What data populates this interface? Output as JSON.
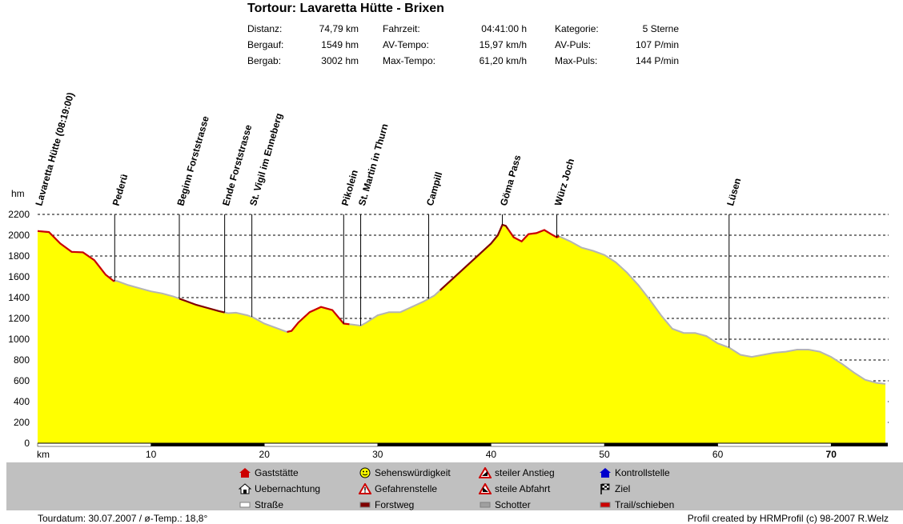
{
  "title": "Tortour: Lavaretta Hütte - Brixen",
  "stats": [
    {
      "label": "Distanz:",
      "value": "74,79 km"
    },
    {
      "label": "Bergauf:",
      "value": "1549 hm"
    },
    {
      "label": "Bergab:",
      "value": "3002 hm"
    },
    {
      "label": "Fahrzeit:",
      "value": "04:41:00 h"
    },
    {
      "label": "AV-Tempo:",
      "value": "15,97 km/h"
    },
    {
      "label": "Max-Tempo:",
      "value": "61,20 km/h"
    },
    {
      "label": "Kategorie:",
      "value": "5 Sterne"
    },
    {
      "label": "AV-Puls:",
      "value": "107 P/min"
    },
    {
      "label": "Max-Puls:",
      "value": "144 P/min"
    }
  ],
  "chart_data": {
    "type": "area",
    "ylabel": "hm",
    "xlabel": "km",
    "ylim": [
      0,
      2200
    ],
    "xlim": [
      0,
      75
    ],
    "yticks": [
      0,
      200,
      400,
      600,
      800,
      1000,
      1200,
      1400,
      1600,
      1800,
      2000,
      2200
    ],
    "xticks": [
      10,
      20,
      30,
      40,
      50,
      60,
      70
    ],
    "bold_xtick": 70,
    "grid": true,
    "fill_color": "#ffff00",
    "profile": [
      [
        0,
        2040
      ],
      [
        1,
        2030
      ],
      [
        2,
        1920
      ],
      [
        3,
        1840
      ],
      [
        4,
        1835
      ],
      [
        5,
        1760
      ],
      [
        6,
        1620
      ],
      [
        6.7,
        1560
      ],
      [
        7,
        1560
      ],
      [
        8,
        1520
      ],
      [
        9,
        1490
      ],
      [
        10,
        1460
      ],
      [
        11,
        1440
      ],
      [
        12,
        1410
      ],
      [
        13,
        1370
      ],
      [
        14,
        1330
      ],
      [
        15,
        1300
      ],
      [
        16,
        1270
      ],
      [
        16.8,
        1250
      ],
      [
        17.5,
        1255
      ],
      [
        18.5,
        1230
      ],
      [
        19,
        1210
      ],
      [
        20,
        1150
      ],
      [
        21,
        1110
      ],
      [
        22,
        1070
      ],
      [
        22.4,
        1080
      ],
      [
        23,
        1160
      ],
      [
        24,
        1260
      ],
      [
        25,
        1310
      ],
      [
        26,
        1280
      ],
      [
        27,
        1150
      ],
      [
        27.8,
        1140
      ],
      [
        28.5,
        1130
      ],
      [
        29,
        1160
      ],
      [
        30,
        1230
      ],
      [
        31,
        1260
      ],
      [
        32,
        1260
      ],
      [
        33,
        1310
      ],
      [
        34,
        1360
      ],
      [
        35,
        1420
      ],
      [
        36,
        1520
      ],
      [
        37,
        1620
      ],
      [
        38,
        1720
      ],
      [
        39,
        1820
      ],
      [
        40,
        1920
      ],
      [
        40.6,
        2000
      ],
      [
        41,
        2100
      ],
      [
        41.3,
        2090
      ],
      [
        42,
        1980
      ],
      [
        42.7,
        1940
      ],
      [
        43.3,
        2010
      ],
      [
        44,
        2020
      ],
      [
        44.7,
        2050
      ],
      [
        45.3,
        2010
      ],
      [
        45.8,
        1980
      ],
      [
        46,
        1990
      ],
      [
        47,
        1940
      ],
      [
        48,
        1880
      ],
      [
        49,
        1850
      ],
      [
        50,
        1810
      ],
      [
        51,
        1740
      ],
      [
        52,
        1640
      ],
      [
        53,
        1520
      ],
      [
        54,
        1380
      ],
      [
        55,
        1230
      ],
      [
        56,
        1100
      ],
      [
        57,
        1060
      ],
      [
        58,
        1060
      ],
      [
        59,
        1030
      ],
      [
        60,
        960
      ],
      [
        61,
        920
      ],
      [
        62,
        850
      ],
      [
        63,
        830
      ],
      [
        64,
        850
      ],
      [
        65,
        870
      ],
      [
        66,
        880
      ],
      [
        67,
        900
      ],
      [
        68,
        900
      ],
      [
        69,
        880
      ],
      [
        70,
        830
      ],
      [
        71,
        760
      ],
      [
        72,
        680
      ],
      [
        73,
        610
      ],
      [
        74,
        580
      ],
      [
        74.79,
        570
      ]
    ],
    "surface_segments": [
      {
        "from": 0,
        "to": 6.8,
        "surface": "Trail/schieben"
      },
      {
        "from": 12.5,
        "to": 16.5,
        "surface": "Forstweg"
      },
      {
        "from": 22,
        "to": 27.5,
        "surface": "Trail/schieben"
      },
      {
        "from": 35.5,
        "to": 41.5,
        "surface": "Forstweg"
      },
      {
        "from": 41.5,
        "to": 46,
        "surface": "Trail/schieben"
      }
    ],
    "waypoints": [
      {
        "km": 0,
        "label": "Lavaretta Hütte (08:19:00)"
      },
      {
        "km": 6.8,
        "label": "Pederü"
      },
      {
        "km": 12.5,
        "label": "Beginn Forststrasse"
      },
      {
        "km": 16.5,
        "label": "Ende Forststrasse"
      },
      {
        "km": 18.9,
        "label": "St. Vigil im Enneberg"
      },
      {
        "km": 27,
        "label": "Pikolein"
      },
      {
        "km": 28.5,
        "label": "St. Martin in Thurn"
      },
      {
        "km": 34.5,
        "label": "Campill"
      },
      {
        "km": 41,
        "label": "Göma Pass"
      },
      {
        "km": 45.8,
        "label": "Würz Joch"
      },
      {
        "km": 61,
        "label": "Lüsen"
      }
    ]
  },
  "legend": [
    {
      "icon": "house-red-icon",
      "label": "Gaststätte"
    },
    {
      "icon": "house-outline-icon",
      "label": "Uebernachtung"
    },
    {
      "icon": "road-white-icon",
      "label": "Straße"
    },
    {
      "icon": "smiley-icon",
      "label": "Sehenswürdigkeit"
    },
    {
      "icon": "warning-icon",
      "label": "Gefahrenstelle"
    },
    {
      "icon": "forest-road-icon",
      "label": "Forstweg"
    },
    {
      "icon": "steep-up-icon",
      "label": "steiler Anstieg"
    },
    {
      "icon": "steep-down-icon",
      "label": "steile Abfahrt"
    },
    {
      "icon": "gravel-icon",
      "label": "Schotter"
    },
    {
      "icon": "house-blue-icon",
      "label": "Kontrollstelle"
    },
    {
      "icon": "finish-flag-icon",
      "label": "Ziel"
    },
    {
      "icon": "trail-icon",
      "label": "Trail/schieben"
    }
  ],
  "colors": {
    "fill": "#ffff00",
    "outline": "#b4b4b4",
    "forstweg": "#800000",
    "trail": "#cc0000",
    "legend_bg": "#c0c0c0"
  },
  "footer": {
    "left": "Tourdatum: 30.07.2007  /  ø-Temp.: 18,8°",
    "right": "Profil created by HRMProfil (c) 98-2007 R.Welz"
  }
}
